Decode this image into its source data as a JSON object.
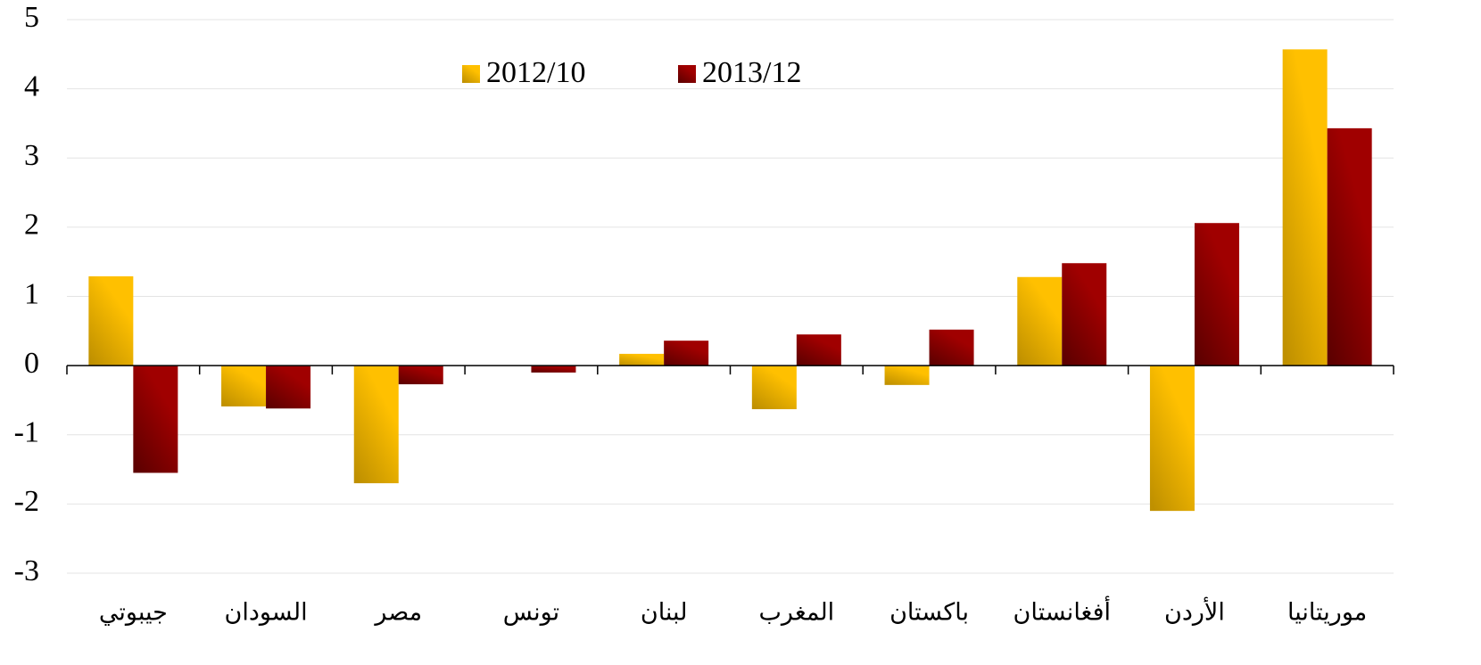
{
  "chart_data": {
    "type": "bar",
    "categories": [
      "جيبوتي",
      "السودان",
      "مصر",
      "تونس",
      "لبنان",
      "المغرب",
      "باكستان",
      "أفغانستان",
      "الأردن",
      "موريتانيا"
    ],
    "series": [
      {
        "name": "2012/10",
        "color": "#ffc000",
        "values": [
          1.29,
          -0.59,
          -1.7,
          0,
          0.17,
          -0.63,
          -0.28,
          1.28,
          -2.1,
          4.57
        ]
      },
      {
        "name": "2013/12",
        "color": "#a00000",
        "values": [
          -1.55,
          -0.62,
          -0.27,
          -0.1,
          0.36,
          0.45,
          0.52,
          1.48,
          2.06,
          3.43
        ]
      }
    ],
    "ylim": [
      -3,
      5
    ],
    "yticks": [
      -3,
      -2,
      -1,
      0,
      1,
      2,
      3,
      4,
      5
    ],
    "grid": true,
    "legend": "top"
  }
}
